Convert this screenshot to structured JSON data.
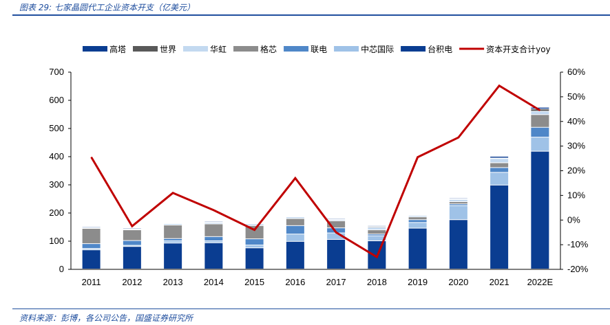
{
  "caption": "图表 29:  七家晶圆代工企业资本开支（亿美元）",
  "source": "资料来源：彭博，各公司公告，国盛证券研究所",
  "chart_data": {
    "type": "bar",
    "stacked": true,
    "title": "",
    "xlabel": "",
    "ylabel": "",
    "categories": [
      "2011",
      "2012",
      "2013",
      "2014",
      "2015",
      "2016",
      "2017",
      "2018",
      "2019",
      "2020",
      "2021",
      "2022E"
    ],
    "ylim": [
      0,
      700
    ],
    "yticks": [
      0,
      100,
      200,
      300,
      400,
      500,
      600,
      700
    ],
    "y2lim": [
      -20,
      60
    ],
    "y2ticks": [
      "-20%",
      "-10%",
      "0%",
      "10%",
      "20%",
      "30%",
      "40%",
      "50%",
      "60%"
    ],
    "legend_position": "top",
    "series": [
      {
        "name": "台积电",
        "color": "#0a3d91",
        "values": [
          68,
          80,
          92,
          93,
          75,
          98,
          105,
          100,
          145,
          175,
          298,
          418
        ]
      },
      {
        "name": "中芯国际",
        "color": "#9fc2e7",
        "values": [
          5,
          4,
          8,
          7,
          10,
          26,
          23,
          18,
          20,
          50,
          45,
          50
        ]
      },
      {
        "name": "联电",
        "color": "#4f87c8",
        "values": [
          17,
          17,
          8,
          15,
          22,
          30,
          18,
          6,
          10,
          6,
          17,
          35
        ]
      },
      {
        "name": "格芯",
        "color": "#8c8c8c",
        "values": [
          54,
          38,
          48,
          45,
          47,
          25,
          25,
          15,
          10,
          8,
          17,
          45
        ]
      },
      {
        "name": "华虹",
        "color": "#c3d9f0",
        "values": [
          3,
          3,
          5,
          5,
          6,
          6,
          4,
          9,
          5,
          8,
          15,
          12
        ]
      },
      {
        "name": "世界",
        "color": "#595959",
        "values": [
          1,
          1,
          1,
          1,
          1,
          1,
          2,
          3,
          1,
          2,
          2,
          8
        ]
      },
      {
        "name": "高塔",
        "color": "#0a3d91",
        "values": [
          3,
          3,
          2,
          3,
          2,
          2,
          3,
          3,
          2,
          3,
          6,
          6
        ]
      }
    ],
    "line": {
      "name": "资本开支合计yoy",
      "color": "#c00000",
      "axis": "right",
      "values": [
        25.5,
        -2.5,
        11,
        4,
        -4,
        17,
        -5,
        -15,
        25.5,
        33.5,
        54.5,
        44.5
      ]
    },
    "legend_order": [
      "高塔",
      "世界",
      "华虹",
      "格芯",
      "联电",
      "中芯国际",
      "台积电",
      "资本开支合计yoy"
    ]
  }
}
